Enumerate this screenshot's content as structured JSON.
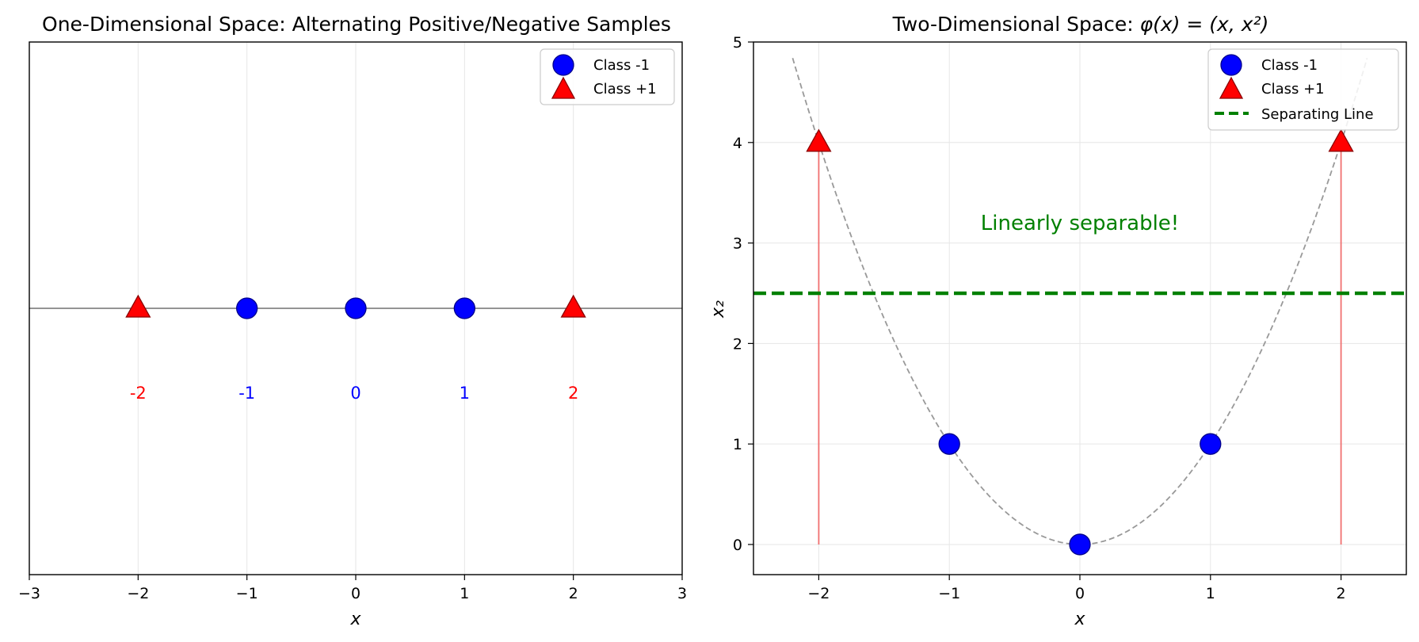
{
  "colors": {
    "class_neg": "#0000ff",
    "class_pos": "#ff0000",
    "separator": "#008000",
    "curve": "#999999",
    "grid": "#e6e6e6",
    "projection": "#f07070"
  },
  "chart_data": [
    {
      "type": "scatter",
      "title": "One-Dimensional Space: Alternating Positive/Negative Samples",
      "xlabel": "x",
      "ylabel": "",
      "xlim": [
        -3,
        3
      ],
      "ylim": [
        -0.5,
        0.5
      ],
      "xticks": [
        "−3",
        "−2",
        "−1",
        "0",
        "1",
        "2",
        "3"
      ],
      "grid": "vertical",
      "legend": {
        "position": "top-right",
        "entries": [
          "Class -1",
          "Class +1"
        ]
      },
      "series": [
        {
          "name": "Class -1",
          "marker": "circle",
          "x": [
            -1,
            0,
            1
          ],
          "y": [
            0,
            0,
            0
          ]
        },
        {
          "name": "Class +1",
          "marker": "triangle",
          "x": [
            -2,
            2
          ],
          "y": [
            0,
            0
          ]
        }
      ],
      "point_labels": [
        {
          "x": -2,
          "text": "-2",
          "class": "pos"
        },
        {
          "x": -1,
          "text": "-1",
          "class": "neg"
        },
        {
          "x": 0,
          "text": "0",
          "class": "neg"
        },
        {
          "x": 1,
          "text": "1",
          "class": "neg"
        },
        {
          "x": 2,
          "text": "2",
          "class": "pos"
        }
      ],
      "baseline_y": 0,
      "point_label_y": -0.17
    },
    {
      "type": "scatter",
      "title_prefix": "Two-Dimensional Space: ",
      "title_math": "φ(x) = (x, x²)",
      "xlabel": "x",
      "ylabel": "x₂",
      "xlim": [
        -2.5,
        2.5
      ],
      "ylim": [
        -0.3,
        5
      ],
      "xticks": [
        "−2",
        "−1",
        "0",
        "1",
        "2"
      ],
      "yticks": [
        "0",
        "1",
        "2",
        "3",
        "4",
        "5"
      ],
      "grid": "both",
      "legend": {
        "position": "top-right",
        "entries": [
          "Class -1",
          "Class +1",
          "Separating Line"
        ]
      },
      "series": [
        {
          "name": "Class -1",
          "marker": "circle",
          "x": [
            -1,
            0,
            1
          ],
          "y": [
            1,
            0,
            1
          ]
        },
        {
          "name": "Class +1",
          "marker": "triangle",
          "x": [
            -2,
            2
          ],
          "y": [
            4,
            4
          ]
        }
      ],
      "separating_line_y": 2.5,
      "curve": {
        "expr": "y = x^2",
        "x_range": [
          -2.2,
          2.2
        ]
      },
      "projections": [
        {
          "x": -2,
          "y0": 0,
          "y1": 4
        },
        {
          "x": 2,
          "y0": 0,
          "y1": 4
        }
      ],
      "annotation": {
        "text": "Linearly separable!",
        "x": 0,
        "y": 3.2
      }
    }
  ]
}
